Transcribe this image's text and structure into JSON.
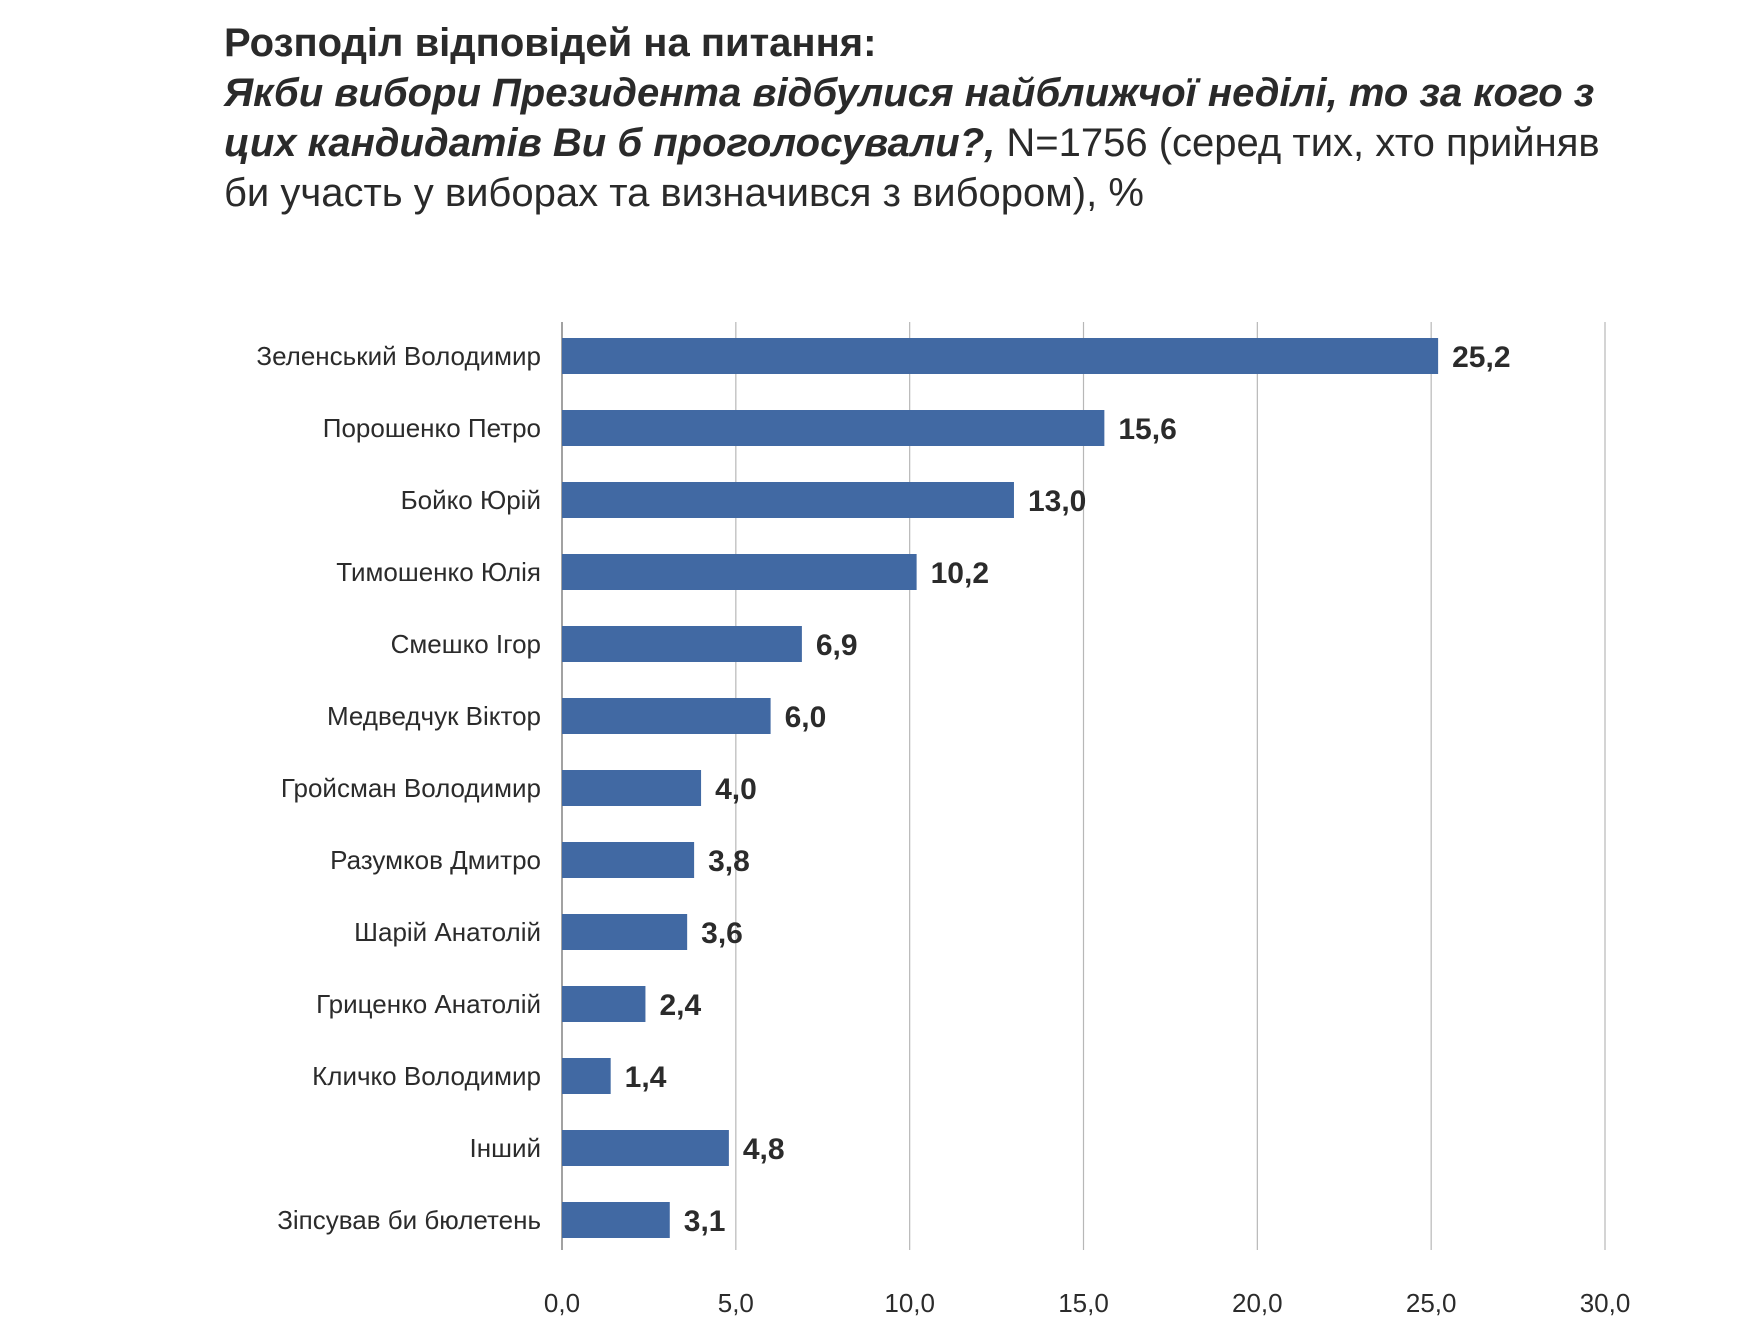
{
  "chart_data": {
    "type": "bar",
    "orientation": "horizontal",
    "title": "Розподіл відповідей на питання:",
    "question": "Якби вибори Президента відбулися найближчої неділі, то за кого з цих кандидатів Ви б проголосували?,",
    "subtitle": " N=1756 (серед тих, хто прийняв би участь у виборах та визначився з вибором), %",
    "categories": [
      "Зеленський Володимир",
      "Порошенко Петро",
      "Бойко Юрій",
      "Тимошенко Юлія",
      "Смешко Ігор",
      "Медведчук Віктор",
      "Гройсман Володимир",
      "Разумков Дмитро",
      "Шарій Анатолій",
      "Гриценко Анатолій",
      "Кличко Володимир",
      "Інший",
      "Зіпсував би бюлетень"
    ],
    "values": [
      25.2,
      15.6,
      13.0,
      10.2,
      6.9,
      6.0,
      4.0,
      3.8,
      3.6,
      2.4,
      1.4,
      4.8,
      3.1
    ],
    "value_labels": [
      "25,2",
      "15,6",
      "13,0",
      "10,2",
      "6,9",
      "6,0",
      "4,0",
      "3,8",
      "3,6",
      "2,4",
      "1,4",
      "4,8",
      "3,1"
    ],
    "xlim": [
      0,
      30
    ],
    "xticks": [
      0,
      5,
      10,
      15,
      20,
      25,
      30
    ],
    "xtick_labels": [
      "0,0",
      "5,0",
      "10,0",
      "15,0",
      "20,0",
      "25,0",
      "30,0"
    ],
    "xlabel": "",
    "ylabel": "",
    "grid": "vertical",
    "legend": "none",
    "bar_color": "#4169a3",
    "grid_color": "#b7b7b7"
  }
}
